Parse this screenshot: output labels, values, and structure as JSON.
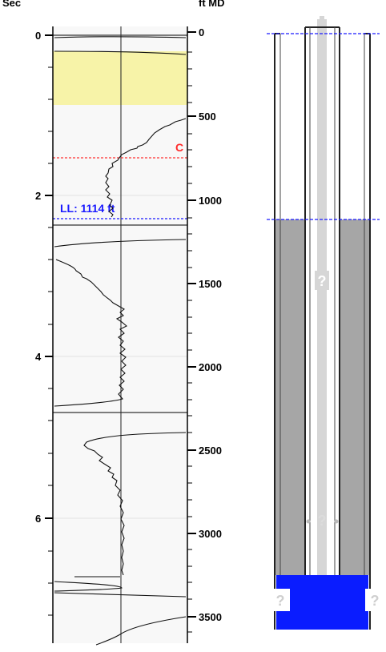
{
  "left_axis": {
    "title": "Sec",
    "tick_labels": [
      "0",
      "2",
      "4",
      "6"
    ]
  },
  "right_axis": {
    "title": "ft MD",
    "tick_labels": [
      "0",
      "500",
      "1000",
      "1500",
      "2000",
      "2500",
      "3000",
      "3500"
    ]
  },
  "markers": {
    "c_label": "C",
    "ll_label": "LL: 1114 ft",
    "ll_depth_ft": 1114
  },
  "well_diagram": {
    "unknown_label": "?"
  },
  "colors": {
    "highlight_band": "#f7f3a8",
    "c_line": "#ff3333",
    "ll_line": "#1a1aff",
    "annulus_fill": "#a6a6a6",
    "bottom_fill": "#0a1cff",
    "tubing": "#d6d6d6"
  }
}
